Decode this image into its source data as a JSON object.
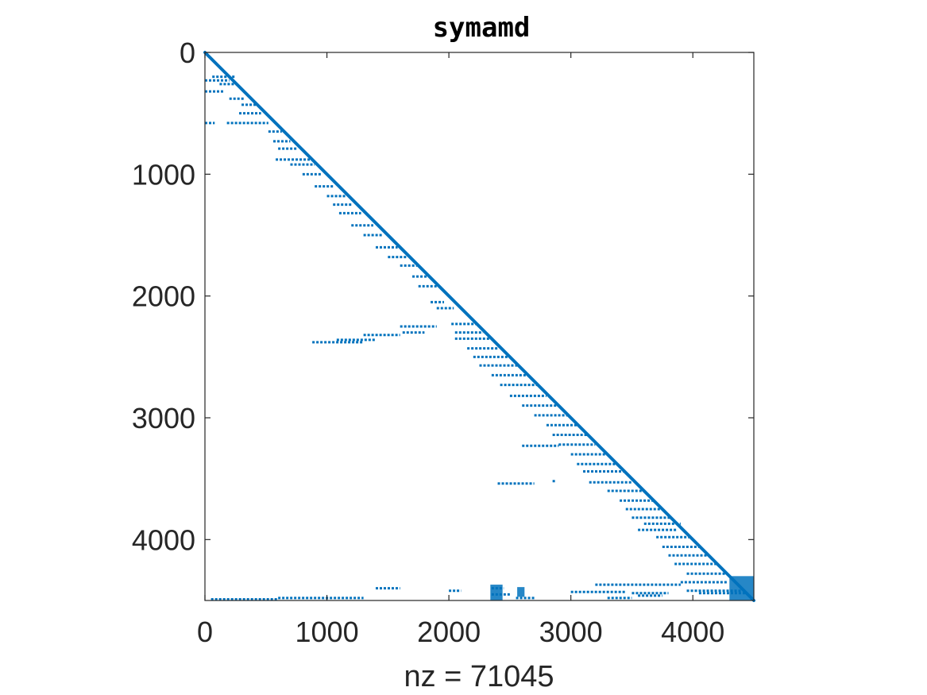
{
  "chart_data": {
    "type": "scatter",
    "title": "symamd",
    "xlabel": "nz = 71045",
    "ylabel": "",
    "xlim": [
      0,
      4500
    ],
    "ylim": [
      0,
      4500
    ],
    "y_reversed": true,
    "xticks": [
      0,
      1000,
      2000,
      3000,
      4000
    ],
    "yticks": [
      0,
      1000,
      2000,
      3000,
      4000
    ],
    "xtick_labels": [
      "0",
      "1000",
      "2000",
      "3000",
      "4000"
    ],
    "ytick_labels": [
      "0",
      "1000",
      "2000",
      "3000",
      "4000"
    ],
    "grid": false,
    "marker_color": "#0072BD",
    "diagonal": [
      [
        0,
        0
      ],
      [
        4500,
        4500
      ]
    ],
    "segments": [
      [
        60,
        200,
        250,
        200
      ],
      [
        0,
        230,
        200,
        230
      ],
      [
        0,
        320,
        150,
        320
      ],
      [
        120,
        260,
        260,
        260
      ],
      [
        200,
        380,
        320,
        380
      ],
      [
        300,
        430,
        420,
        430
      ],
      [
        280,
        500,
        460,
        500
      ],
      [
        0,
        580,
        80,
        580
      ],
      [
        180,
        580,
        520,
        580
      ],
      [
        520,
        650,
        630,
        650
      ],
      [
        560,
        730,
        700,
        730
      ],
      [
        600,
        790,
        760,
        790
      ],
      [
        580,
        880,
        860,
        880
      ],
      [
        700,
        920,
        900,
        920
      ],
      [
        800,
        1000,
        950,
        1000
      ],
      [
        900,
        1100,
        1050,
        1100
      ],
      [
        1000,
        1180,
        1150,
        1180
      ],
      [
        1050,
        1250,
        1200,
        1250
      ],
      [
        1100,
        1320,
        1280,
        1320
      ],
      [
        1200,
        1420,
        1380,
        1420
      ],
      [
        1300,
        1500,
        1460,
        1500
      ],
      [
        1400,
        1600,
        1580,
        1600
      ],
      [
        1500,
        1680,
        1660,
        1680
      ],
      [
        1600,
        1750,
        1740,
        1750
      ],
      [
        1700,
        1840,
        1830,
        1840
      ],
      [
        1750,
        1920,
        1900,
        1920
      ],
      [
        1850,
        2050,
        1960,
        2050
      ],
      [
        1900,
        2100,
        2040,
        2100
      ],
      [
        880,
        2380,
        1300,
        2380
      ],
      [
        1080,
        2360,
        1400,
        2360
      ],
      [
        1300,
        2320,
        1600,
        2320
      ],
      [
        1620,
        2300,
        1800,
        2300
      ],
      [
        1600,
        2250,
        1900,
        2250
      ],
      [
        2020,
        2230,
        2220,
        2230
      ],
      [
        2050,
        2300,
        2280,
        2300
      ],
      [
        2050,
        2350,
        2360,
        2350
      ],
      [
        2150,
        2430,
        2400,
        2430
      ],
      [
        2200,
        2500,
        2480,
        2500
      ],
      [
        2250,
        2570,
        2560,
        2570
      ],
      [
        2350,
        2650,
        2640,
        2650
      ],
      [
        2420,
        2730,
        2720,
        2730
      ],
      [
        2500,
        2820,
        2800,
        2820
      ],
      [
        2600,
        2900,
        2900,
        2900
      ],
      [
        2700,
        2980,
        2980,
        2980
      ],
      [
        2800,
        3060,
        3060,
        3060
      ],
      [
        2850,
        3140,
        3140,
        3140
      ],
      [
        2600,
        3230,
        2900,
        3230
      ],
      [
        2900,
        3220,
        3200,
        3220
      ],
      [
        3000,
        3300,
        3290,
        3300
      ],
      [
        3050,
        3380,
        3370,
        3380
      ],
      [
        3100,
        3440,
        3430,
        3440
      ],
      [
        2400,
        3540,
        2700,
        3540
      ],
      [
        2850,
        3520,
        2880,
        3520
      ],
      [
        3150,
        3530,
        3500,
        3530
      ],
      [
        3300,
        3600,
        3590,
        3600
      ],
      [
        3400,
        3680,
        3680,
        3680
      ],
      [
        3450,
        3750,
        3750,
        3750
      ],
      [
        3500,
        3820,
        3820,
        3820
      ],
      [
        3550,
        3920,
        3870,
        3920
      ],
      [
        3600,
        3870,
        3900,
        3870
      ],
      [
        3700,
        3980,
        3980,
        3980
      ],
      [
        3750,
        4060,
        4060,
        4060
      ],
      [
        3800,
        4130,
        4130,
        4130
      ],
      [
        3850,
        4200,
        4200,
        4200
      ],
      [
        3950,
        4280,
        4280,
        4280
      ],
      [
        3200,
        4370,
        3900,
        4370
      ],
      [
        3900,
        4350,
        4280,
        4350
      ],
      [
        3950,
        4420,
        4400,
        4420
      ],
      [
        3000,
        4430,
        3450,
        4430
      ],
      [
        3500,
        4440,
        3800,
        4440
      ],
      [
        600,
        4480,
        1300,
        4480
      ],
      [
        50,
        4490,
        600,
        4490
      ],
      [
        1400,
        4400,
        1600,
        4400
      ],
      [
        2000,
        4420,
        2100,
        4420
      ],
      [
        3300,
        4480,
        3500,
        4480
      ],
      [
        3550,
        4460,
        3750,
        4460
      ],
      [
        4050,
        4440,
        4450,
        4440
      ],
      [
        2350,
        4400,
        2450,
        4400
      ],
      [
        2350,
        4450,
        2500,
        4450
      ],
      [
        2550,
        4480,
        2700,
        4480
      ]
    ],
    "blocks": [
      [
        2340,
        4370,
        2440,
        4500
      ],
      [
        2560,
        4390,
        2620,
        4470
      ],
      [
        4300,
        4300,
        4500,
        4500
      ]
    ]
  }
}
